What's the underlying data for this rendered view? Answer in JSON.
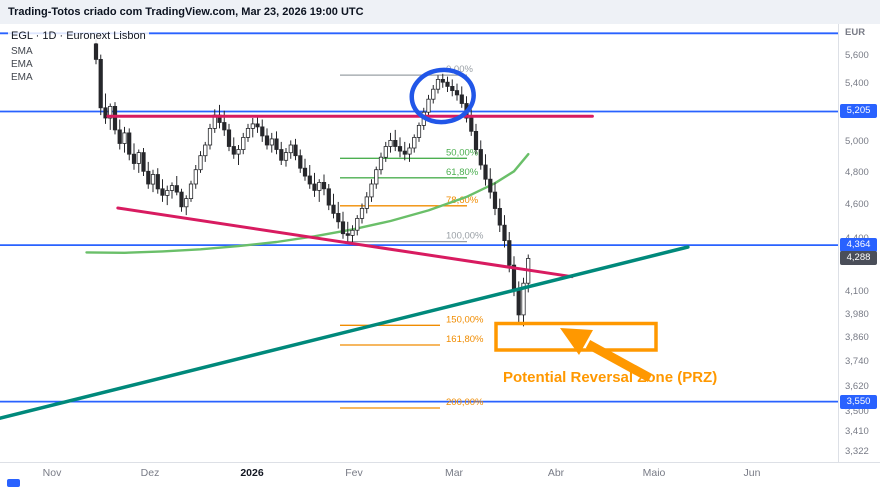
{
  "header": {
    "title": "Trading-Totos criado com TradingView.com, Mar 23, 2026 19:00 UTC"
  },
  "legend": {
    "symbol_line": "EGL · 1D · Euronext Lisbon",
    "indicators": [
      "SMA",
      "EMA",
      "EMA"
    ]
  },
  "price_axis": {
    "currency_label": "EUR",
    "ticks": [
      {
        "label": "5,600",
        "price": 5600
      },
      {
        "label": "5,400",
        "price": 5400
      },
      {
        "label": "5,000",
        "price": 5000
      },
      {
        "label": "4,800",
        "price": 4800
      },
      {
        "label": "4,600",
        "price": 4600
      },
      {
        "label": "4,400",
        "price": 4400
      },
      {
        "label": "4,100",
        "price": 4100
      },
      {
        "label": "3,980",
        "price": 3980
      },
      {
        "label": "3,860",
        "price": 3860
      },
      {
        "label": "3,740",
        "price": 3740
      },
      {
        "label": "3,620",
        "price": 3620
      },
      {
        "label": "3,500",
        "price": 3500
      },
      {
        "label": "3,410",
        "price": 3410
      },
      {
        "label": "3,322",
        "price": 3322
      }
    ],
    "level_badges": [
      {
        "label": "5,205",
        "price": 5205,
        "color": "#2962ff"
      },
      {
        "label": "4,364",
        "price": 4364,
        "color": "#2962ff"
      },
      {
        "label": "3,550",
        "price": 3550,
        "color": "#2962ff"
      }
    ],
    "last_price_badge": {
      "label": "4,288",
      "price": 4288,
      "color": "#4a4e59"
    }
  },
  "time_axis": {
    "labels": [
      "Nov",
      "Dez",
      "2026",
      "Fev",
      "Mar",
      "Abr",
      "Maio",
      "Jun"
    ]
  },
  "annotations": {
    "prz_text": "Potential Reversal Zone (PRZ)",
    "accent_orange": "#ff9800",
    "accent_blue_line": "#2962ff",
    "circle_color": "#2156e8",
    "accent_pink": "#d81b60",
    "accent_teal": "#00897b",
    "ma_green": "#6abf69",
    "candle_color": "#26272b"
  },
  "chart_data": {
    "type": "candlestick",
    "symbol": "EGL",
    "timeframe": "1D",
    "exchange": "Euronext Lisbon",
    "currency": "EUR",
    "x_tick_labels": [
      "Nov",
      "Dez",
      "2026",
      "Fev",
      "Mar",
      "Abr",
      "Maio",
      "Jun"
    ],
    "y_axis_range_approx": [
      3322,
      5772
    ],
    "last_price": 4288,
    "horizontal_levels": [
      5770,
      5205,
      4364,
      3550
    ],
    "prz_zone": {
      "price_top": 3935,
      "price_bottom": 3800
    },
    "fib_levels": [
      {
        "label": "0,00%",
        "price": 5461,
        "color": "#9aa0a6"
      },
      {
        "label": "50,00%",
        "price": 4893,
        "color": "#4caf50"
      },
      {
        "label": "61,80%",
        "price": 4769,
        "color": "#4caf50"
      },
      {
        "label": "78,60%",
        "price": 4596,
        "color": "#f08c00"
      },
      {
        "label": "100,00%",
        "price": 4384,
        "color": "#9aa0a6"
      },
      {
        "label": "150,00%",
        "price": 3926,
        "color": "#f08c00"
      },
      {
        "label": "161,80%",
        "price": 3825,
        "color": "#f08c00"
      },
      {
        "label": "200,00%",
        "price": 3520,
        "color": "#f08c00"
      }
    ],
    "trendlines": [
      {
        "name": "resistance-line",
        "color": "#d81b60",
        "width": 3,
        "i1": 2.5,
        "p1": 5172,
        "i2": 104.5,
        "p2": 5172
      },
      {
        "name": "descending-trendline",
        "color": "#d81b60",
        "width": 3,
        "i1": 4.6,
        "p1": 4583,
        "i2": 100.2,
        "p2": 4186
      },
      {
        "name": "ascending-trendline",
        "color": "#00897b",
        "width": 3.5,
        "i1": -20.2,
        "p1": 3473,
        "i2": 124.6,
        "p2": 4353
      }
    ],
    "sma_points": [
      [
        -2,
        4322
      ],
      [
        6,
        4320
      ],
      [
        14,
        4328
      ],
      [
        22,
        4340
      ],
      [
        30,
        4358
      ],
      [
        38,
        4382
      ],
      [
        46,
        4415
      ],
      [
        54,
        4455
      ],
      [
        62,
        4505
      ],
      [
        70,
        4568
      ],
      [
        78,
        4650
      ],
      [
        84,
        4735
      ],
      [
        88,
        4810
      ],
      [
        91,
        4920
      ]
    ],
    "candles": [
      [
        5690,
        5725,
        5540,
        5575
      ],
      [
        5575,
        5610,
        5180,
        5230
      ],
      [
        5230,
        5330,
        5120,
        5160
      ],
      [
        5160,
        5260,
        5080,
        5240
      ],
      [
        5240,
        5270,
        5050,
        5080
      ],
      [
        5080,
        5150,
        4950,
        4990
      ],
      [
        4990,
        5100,
        4930,
        5060
      ],
      [
        5060,
        5090,
        4880,
        4920
      ],
      [
        4920,
        4990,
        4820,
        4860
      ],
      [
        4860,
        4950,
        4800,
        4930
      ],
      [
        4930,
        4960,
        4780,
        4810
      ],
      [
        4810,
        4870,
        4700,
        4730
      ],
      [
        4730,
        4820,
        4680,
        4790
      ],
      [
        4790,
        4830,
        4670,
        4700
      ],
      [
        4700,
        4760,
        4620,
        4660
      ],
      [
        4660,
        4720,
        4600,
        4690
      ],
      [
        4690,
        4740,
        4640,
        4720
      ],
      [
        4720,
        4780,
        4660,
        4680
      ],
      [
        4680,
        4700,
        4560,
        4590
      ],
      [
        4590,
        4660,
        4540,
        4640
      ],
      [
        4640,
        4750,
        4620,
        4730
      ],
      [
        4730,
        4850,
        4700,
        4820
      ],
      [
        4820,
        4940,
        4800,
        4910
      ],
      [
        4910,
        5000,
        4870,
        4980
      ],
      [
        4980,
        5120,
        4950,
        5090
      ],
      [
        5090,
        5220,
        5060,
        5180
      ],
      [
        5180,
        5250,
        5090,
        5130
      ],
      [
        5130,
        5210,
        5040,
        5080
      ],
      [
        5080,
        5120,
        4940,
        4970
      ],
      [
        4970,
        5030,
        4890,
        4920
      ],
      [
        4920,
        4980,
        4850,
        4950
      ],
      [
        4950,
        5060,
        4920,
        5030
      ],
      [
        5030,
        5120,
        5000,
        5090
      ],
      [
        5090,
        5160,
        5030,
        5120
      ],
      [
        5120,
        5180,
        5060,
        5100
      ],
      [
        5100,
        5150,
        5000,
        5040
      ],
      [
        5040,
        5090,
        4950,
        4980
      ],
      [
        4980,
        5060,
        4930,
        5020
      ],
      [
        5020,
        5070,
        4920,
        4950
      ],
      [
        4950,
        5000,
        4850,
        4880
      ],
      [
        4880,
        4960,
        4840,
        4930
      ],
      [
        4930,
        5010,
        4890,
        4980
      ],
      [
        4980,
        5020,
        4880,
        4910
      ],
      [
        4910,
        4950,
        4800,
        4830
      ],
      [
        4830,
        4890,
        4750,
        4780
      ],
      [
        4780,
        4850,
        4700,
        4730
      ],
      [
        4730,
        4800,
        4650,
        4690
      ],
      [
        4690,
        4760,
        4620,
        4740
      ],
      [
        4740,
        4790,
        4660,
        4700
      ],
      [
        4700,
        4730,
        4570,
        4600
      ],
      [
        4600,
        4670,
        4520,
        4550
      ],
      [
        4550,
        4620,
        4460,
        4500
      ],
      [
        4500,
        4560,
        4400,
        4430
      ],
      [
        4430,
        4500,
        4370,
        4420
      ],
      [
        4420,
        4480,
        4370,
        4450
      ],
      [
        4450,
        4540,
        4420,
        4520
      ],
      [
        4520,
        4610,
        4490,
        4580
      ],
      [
        4580,
        4680,
        4550,
        4650
      ],
      [
        4650,
        4760,
        4620,
        4730
      ],
      [
        4730,
        4840,
        4700,
        4820
      ],
      [
        4820,
        4930,
        4790,
        4900
      ],
      [
        4900,
        5000,
        4870,
        4970
      ],
      [
        4970,
        5060,
        4930,
        5010
      ],
      [
        5010,
        5080,
        4940,
        4970
      ],
      [
        4970,
        5030,
        4900,
        4940
      ],
      [
        4940,
        5000,
        4880,
        4920
      ],
      [
        4920,
        4990,
        4870,
        4960
      ],
      [
        4960,
        5050,
        4930,
        5030
      ],
      [
        5030,
        5130,
        5000,
        5110
      ],
      [
        5110,
        5230,
        5080,
        5200
      ],
      [
        5200,
        5320,
        5170,
        5290
      ],
      [
        5290,
        5390,
        5260,
        5360
      ],
      [
        5360,
        5460,
        5330,
        5430
      ],
      [
        5430,
        5470,
        5370,
        5410
      ],
      [
        5410,
        5450,
        5340,
        5380
      ],
      [
        5380,
        5430,
        5310,
        5350
      ],
      [
        5350,
        5400,
        5280,
        5320
      ],
      [
        5320,
        5380,
        5230,
        5260
      ],
      [
        5260,
        5310,
        5130,
        5160
      ],
      [
        5160,
        5220,
        5040,
        5070
      ],
      [
        5070,
        5120,
        4920,
        4950
      ],
      [
        4950,
        5010,
        4820,
        4850
      ],
      [
        4850,
        4920,
        4720,
        4760
      ],
      [
        4760,
        4830,
        4640,
        4680
      ],
      [
        4680,
        4740,
        4540,
        4580
      ],
      [
        4580,
        4640,
        4440,
        4480
      ],
      [
        4480,
        4540,
        4350,
        4390
      ],
      [
        4390,
        4440,
        4210,
        4250
      ],
      [
        4250,
        4300,
        4080,
        4120
      ],
      [
        4120,
        4160,
        3930,
        3980
      ],
      [
        3980,
        4180,
        3920,
        4150
      ],
      [
        4150,
        4310,
        4100,
        4288
      ]
    ]
  }
}
